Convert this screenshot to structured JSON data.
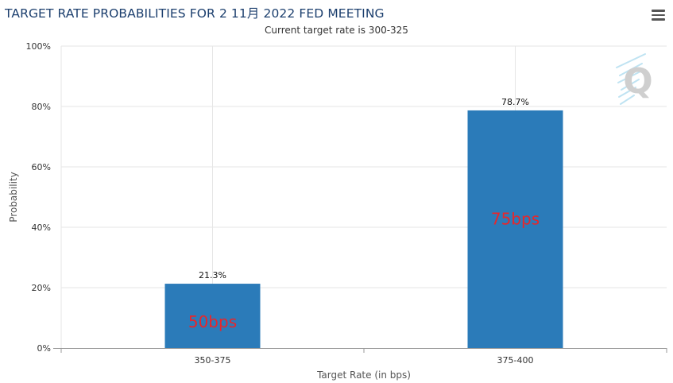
{
  "header": {
    "title": "TARGET RATE PROBABILITIES FOR 2 11月 2022 FED MEETING",
    "subtitle": "Current target rate is 300-325",
    "menu_icon": "hamburger-menu-icon"
  },
  "watermark": {
    "icon": "q-logo-icon",
    "letter": "Q"
  },
  "colors": {
    "bar": "#2b7bb9",
    "annotation": "#e8262a",
    "title": "#1c3f6e",
    "grid": "#e6e6e6"
  },
  "chart_data": {
    "type": "bar",
    "categories": [
      "350-375",
      "375-400"
    ],
    "values": [
      21.3,
      78.7
    ],
    "data_labels": [
      "21.3%",
      "78.7%"
    ],
    "annotations": [
      "50bps",
      "75bps"
    ],
    "xlabel": "Target Rate (in bps)",
    "ylabel": "Probability",
    "ylim": [
      0,
      100
    ],
    "yticks": [
      0,
      20,
      40,
      60,
      80,
      100
    ],
    "ytick_labels": [
      "0%",
      "20%",
      "40%",
      "60%",
      "80%",
      "100%"
    ],
    "grid": true,
    "legend": "none"
  }
}
